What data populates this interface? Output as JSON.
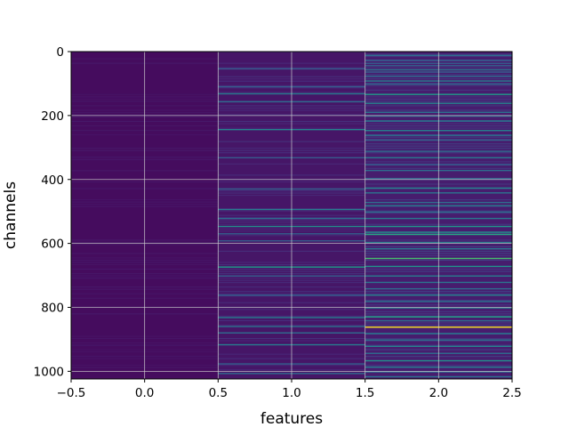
{
  "chart_data": {
    "type": "heatmap",
    "xlabel": "features",
    "ylabel": "channels",
    "xlim": [
      -0.5,
      2.5
    ],
    "ylim": [
      1024,
      0
    ],
    "x_ticks": [
      -0.5,
      0.0,
      0.5,
      1.0,
      1.5,
      2.0,
      2.5
    ],
    "x_tick_labels": [
      "−0.5",
      "0.0",
      "0.5",
      "1.0",
      "1.5",
      "2.0",
      "2.5"
    ],
    "y_ticks": [
      0,
      200,
      400,
      600,
      800,
      1000
    ],
    "y_tick_labels": [
      "0",
      "200",
      "400",
      "600",
      "800",
      "1000"
    ],
    "grid": true,
    "colormap": "viridis",
    "n_channels": 1024,
    "features": [
      0,
      1,
      2
    ],
    "base_values": [
      0.03,
      0.06,
      0.08
    ],
    "bright_channels": {
      "feature_1": [
        [
          52,
          0.28
        ],
        [
          108,
          0.3
        ],
        [
          130,
          0.42
        ],
        [
          155,
          0.35
        ],
        [
          242,
          0.45
        ],
        [
          330,
          0.28
        ],
        [
          428,
          0.3
        ],
        [
          492,
          0.42
        ],
        [
          520,
          0.35
        ],
        [
          545,
          0.48
        ],
        [
          568,
          0.3
        ],
        [
          590,
          0.28
        ],
        [
          672,
          0.55
        ],
        [
          700,
          0.3
        ],
        [
          760,
          0.3
        ],
        [
          830,
          0.42
        ],
        [
          858,
          0.38
        ],
        [
          878,
          0.35
        ],
        [
          915,
          0.42
        ],
        [
          975,
          0.3
        ],
        [
          1005,
          0.35
        ]
      ],
      "feature_2": [
        [
          10,
          0.35
        ],
        [
          25,
          0.3
        ],
        [
          35,
          0.28
        ],
        [
          42,
          0.3
        ],
        [
          55,
          0.38
        ],
        [
          62,
          0.3
        ],
        [
          75,
          0.35
        ],
        [
          90,
          0.42
        ],
        [
          100,
          0.32
        ],
        [
          132,
          0.55
        ],
        [
          160,
          0.45
        ],
        [
          188,
          0.38
        ],
        [
          200,
          0.35
        ],
        [
          215,
          0.42
        ],
        [
          245,
          0.45
        ],
        [
          260,
          0.38
        ],
        [
          275,
          0.32
        ],
        [
          310,
          0.35
        ],
        [
          330,
          0.4
        ],
        [
          352,
          0.3
        ],
        [
          370,
          0.35
        ],
        [
          395,
          0.32
        ],
        [
          425,
          0.45
        ],
        [
          440,
          0.38
        ],
        [
          470,
          0.35
        ],
        [
          480,
          0.42
        ],
        [
          500,
          0.35
        ],
        [
          520,
          0.4
        ],
        [
          545,
          0.52
        ],
        [
          563,
          0.5
        ],
        [
          570,
          0.6
        ],
        [
          595,
          0.42
        ],
        [
          615,
          0.4
        ],
        [
          645,
          0.7
        ],
        [
          670,
          0.52
        ],
        [
          700,
          0.42
        ],
        [
          720,
          0.38
        ],
        [
          740,
          0.35
        ],
        [
          760,
          0.45
        ],
        [
          780,
          0.38
        ],
        [
          800,
          0.42
        ],
        [
          828,
          0.58
        ],
        [
          840,
          0.35
        ],
        [
          860,
          1.0
        ],
        [
          880,
          0.42
        ],
        [
          900,
          0.38
        ],
        [
          920,
          0.45
        ],
        [
          942,
          0.35
        ],
        [
          965,
          0.5
        ],
        [
          985,
          0.42
        ],
        [
          1000,
          0.35
        ],
        [
          1015,
          0.38
        ]
      ]
    }
  }
}
